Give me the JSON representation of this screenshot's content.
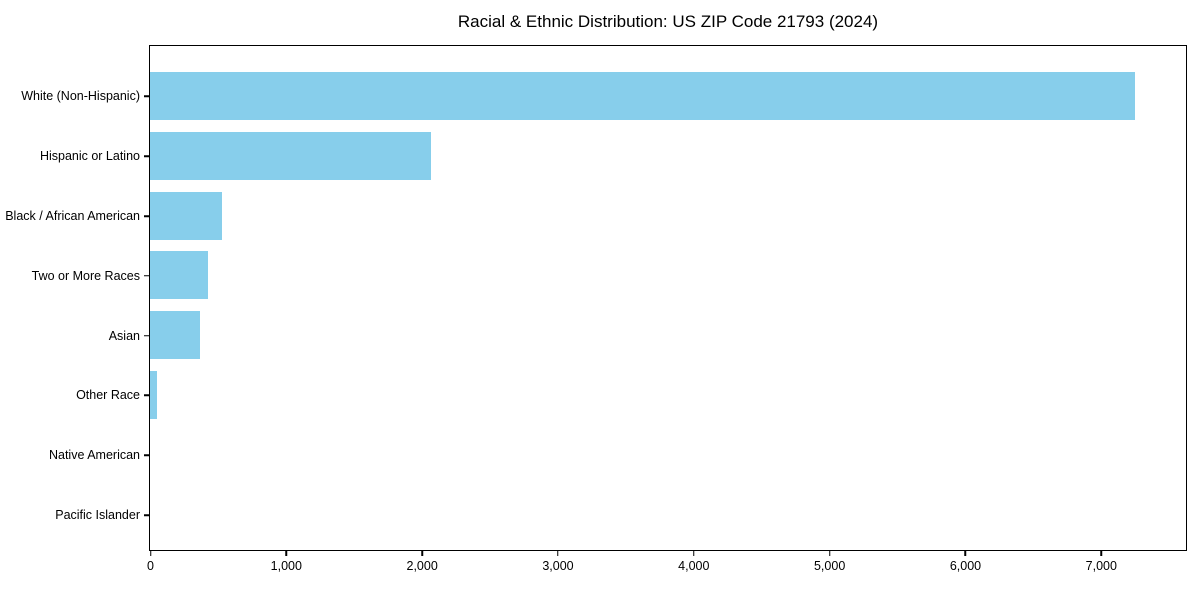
{
  "chart_data": {
    "type": "bar",
    "orientation": "horizontal",
    "title": "Racial & Ethnic Distribution: US ZIP Code 21793 (2024)",
    "categories": [
      "White (Non-Hispanic)",
      "Hispanic or Latino",
      "Black / African American",
      "Two or More Races",
      "Asian",
      "Other Race",
      "Native American",
      "Pacific Islander"
    ],
    "values": [
      7250,
      2070,
      530,
      425,
      365,
      50,
      0,
      0
    ],
    "xlabel": "",
    "ylabel": "",
    "xlim": [
      0,
      7620
    ],
    "xticks": [
      0,
      1000,
      2000,
      3000,
      4000,
      5000,
      6000,
      7000
    ],
    "xtick_labels": [
      "0",
      "1,000",
      "2,000",
      "3,000",
      "4,000",
      "5,000",
      "6,000",
      "7,000"
    ],
    "bar_color": "#87CEEB",
    "grid": false,
    "legend": null,
    "background_color": "#ffffff",
    "axis_color": "#000000"
  }
}
